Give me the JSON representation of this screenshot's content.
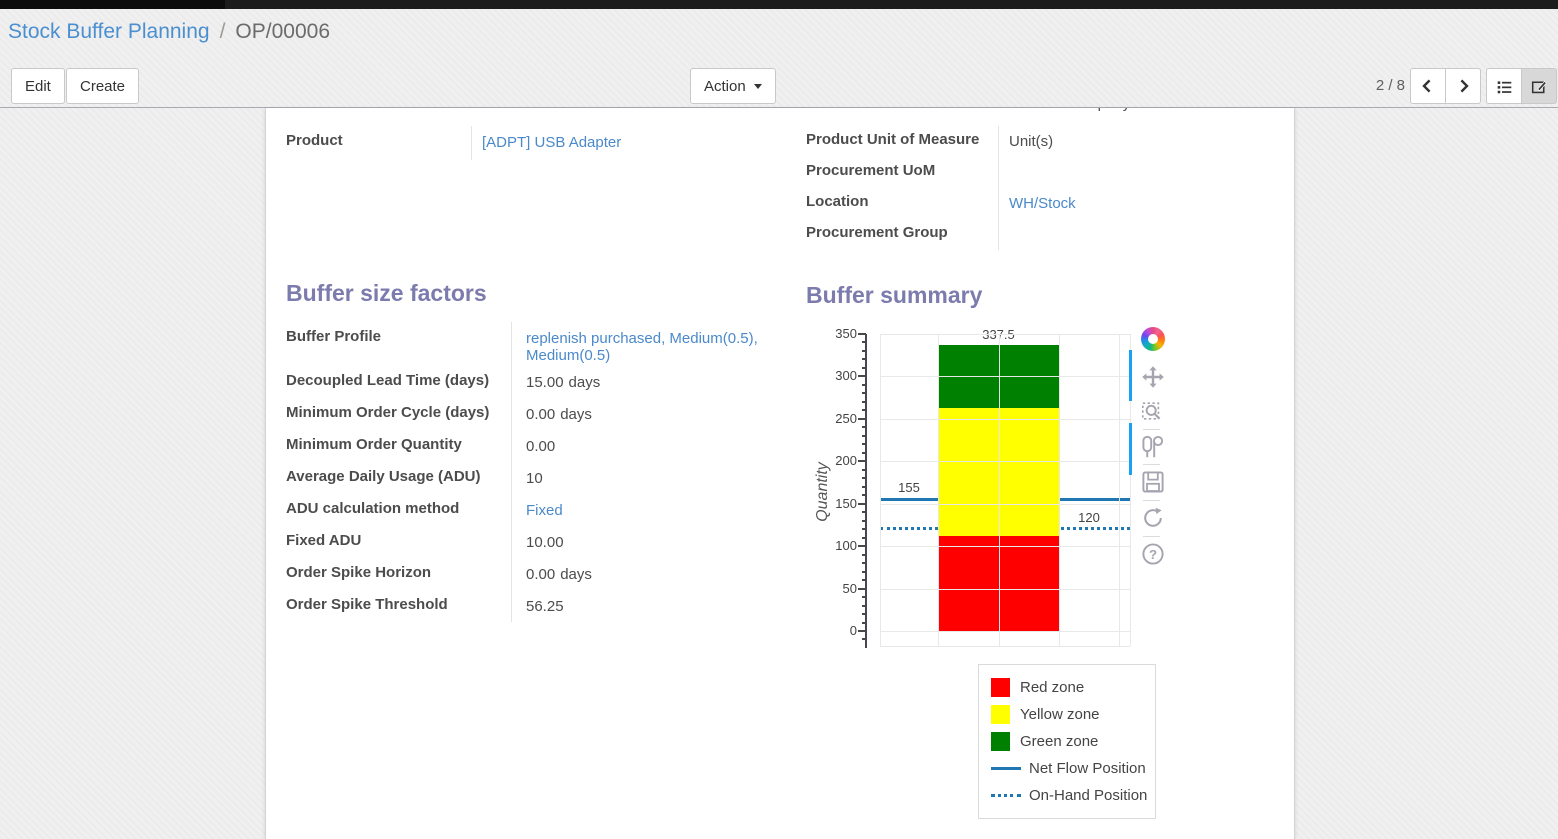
{
  "breadcrumb": {
    "parent": "Stock Buffer Planning",
    "separator": "/",
    "current": "OP/00006"
  },
  "toolbar": {
    "edit_label": "Edit",
    "create_label": "Create",
    "action_label": "Action",
    "pager": "2 / 8"
  },
  "form": {
    "clipped_text": "Company",
    "product": {
      "label": "Product",
      "value": "[ADPT] USB Adapter"
    },
    "right_fields": [
      {
        "label": "Product Unit of Measure",
        "value": "Unit(s)"
      },
      {
        "label": "Procurement UoM",
        "value": ""
      },
      {
        "label": "Location",
        "value": "WH/Stock"
      },
      {
        "label": "Procurement Group",
        "value": ""
      }
    ]
  },
  "buffer_factors": {
    "title": "Buffer size factors",
    "rows": [
      {
        "label": "Buffer Profile",
        "value": "replenish purchased, Medium(0.5), Medium(0.5)"
      },
      {
        "label": "Decoupled Lead Time (days)",
        "value": "15.00",
        "suffix": "days"
      },
      {
        "label": "Minimum Order Cycle (days)",
        "value": "0.00",
        "suffix": "days"
      },
      {
        "label": "Minimum Order Quantity",
        "value": "0.00"
      },
      {
        "label": "Average Daily Usage (ADU)",
        "value": "10"
      },
      {
        "label": "ADU calculation method",
        "value": "Fixed"
      },
      {
        "label": "Fixed ADU",
        "value": "10.00"
      },
      {
        "label": "Order Spike Horizon",
        "value": "0.00",
        "suffix": "days"
      },
      {
        "label": "Order Spike Threshold",
        "value": "56.25"
      }
    ]
  },
  "buffer_summary": {
    "title": "Buffer summary"
  },
  "chart_data": {
    "type": "bar",
    "title": "Buffer summary",
    "ylabel": "Quantity",
    "ylim": [
      0,
      350
    ],
    "yticks": [
      0,
      50,
      100,
      150,
      200,
      250,
      300,
      350
    ],
    "minor_tick_step": 10,
    "grid": true,
    "zones": [
      {
        "name": "Red zone",
        "from": 0,
        "to": 112.5,
        "color": "#ff0000"
      },
      {
        "name": "Yellow zone",
        "from": 112.5,
        "to": 262.5,
        "color": "#ffff00"
      },
      {
        "name": "Green zone",
        "from": 262.5,
        "to": 337.5,
        "color": "#008000"
      }
    ],
    "lines": [
      {
        "name": "Net Flow Position",
        "value": 155,
        "style": "solid",
        "color": "#1f77b4"
      },
      {
        "name": "On-Hand Position",
        "value": 120,
        "style": "dotted",
        "color": "#1f77b4"
      }
    ],
    "annotations": [
      "337.5",
      "262.5",
      "155",
      "112.5",
      "120"
    ],
    "legend": [
      "Red zone",
      "Yellow zone",
      "Green zone",
      "Net Flow Position",
      "On-Hand Position"
    ],
    "legend_position": "bottom-right"
  },
  "colors": {
    "accent_purple": "#7c7bad",
    "link_blue": "#4a89ca",
    "plotly_blue": "#1f77b4"
  }
}
